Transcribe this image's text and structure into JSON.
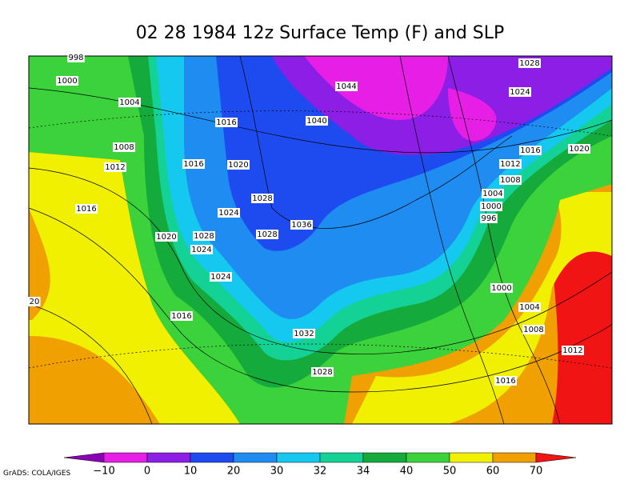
{
  "title": "02 28 1984 12z Surface Temp (F) and SLP",
  "colorbar": {
    "colors": [
      "#8a00b4",
      "#e61ee6",
      "#8c1ee6",
      "#1e4bf0",
      "#1e8cf0",
      "#14c8f0",
      "#14d296",
      "#14aa3c",
      "#3cd23c",
      "#f0f000",
      "#f0a000",
      "#f01414"
    ],
    "labels": [
      "−10",
      "0",
      "10",
      "20",
      "30",
      "32",
      "34",
      "40",
      "50",
      "60",
      "70"
    ]
  },
  "isobar_labels": [
    "998",
    "1000",
    "1004",
    "1008",
    "1012",
    "1016",
    "1016",
    "1040",
    "1044",
    "1028",
    "1024",
    "1016",
    "1020",
    "1012",
    "1008",
    "1004",
    "1000",
    "996",
    "1016",
    "1020",
    "1028",
    "1024",
    "1036",
    "1020",
    "1028",
    "1028",
    "1024",
    "1024",
    "1000",
    "1004",
    "1016",
    "1008",
    "1032",
    "1012",
    "1028",
    "1016",
    "20"
  ],
  "credit": "GrADS: COLA/IGES"
}
